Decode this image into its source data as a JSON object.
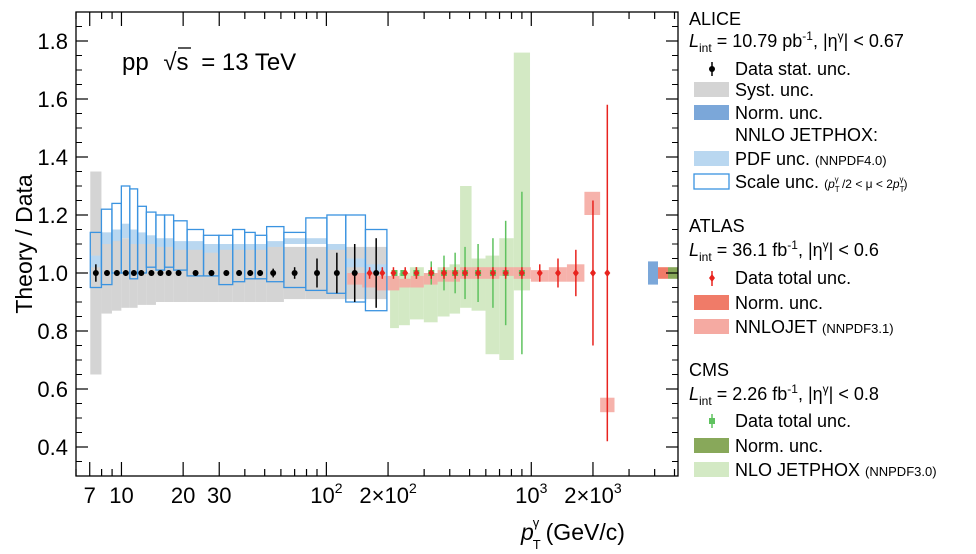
{
  "chart_data": {
    "type": "scatter",
    "xscale": "log",
    "xlim": [
      6,
      5200
    ],
    "ylim": [
      0.3,
      1.9
    ],
    "ylabel": "Theory / Data",
    "xlabel": {
      "main": "p",
      "sup": "γ",
      "sub": "T",
      "unit": " (GeV/c)"
    },
    "annotation": {
      "pp": "pp",
      "root": "√s",
      "eq": "= 13 TeV"
    },
    "yticks": [
      {
        "v": 0.4,
        "label": "0.4"
      },
      {
        "v": 0.6,
        "label": "0.6"
      },
      {
        "v": 0.8,
        "label": "0.8"
      },
      {
        "v": 1.0,
        "label": "1.0"
      },
      {
        "v": 1.2,
        "label": "1.2"
      },
      {
        "v": 1.4,
        "label": "1.4"
      },
      {
        "v": 1.6,
        "label": "1.6"
      },
      {
        "v": 1.8,
        "label": "1.8"
      }
    ],
    "xticks": [
      {
        "v": 7,
        "label": "7"
      },
      {
        "v": 10,
        "label": "10"
      },
      {
        "v": 20,
        "label": "20"
      },
      {
        "v": 30,
        "label": "30"
      },
      {
        "v": 100,
        "label": "10",
        "sup": "2"
      },
      {
        "v": 200,
        "label": "2×10",
        "sup": "2"
      },
      {
        "v": 1000,
        "label": "10",
        "sup": "3"
      },
      {
        "v": 2000,
        "label": "2×10",
        "sup": "3"
      }
    ],
    "colors": {
      "alice_data": "#000000",
      "alice_syst": "#d4d4d4",
      "alice_norm": "#7ba7d9",
      "alice_pdf": "#b9d7f0",
      "alice_scale": "#3a93e0",
      "atlas_data": "#e8231e",
      "atlas_norm": "#f07b68",
      "atlas_nnlojet": "#f5aaa2",
      "cms_data": "#5fc25f",
      "cms_norm": "#88a85a",
      "cms_nlo": "#d3e9c4"
    },
    "series": [
      {
        "name": "ALICE",
        "x": [
          7.5,
          8.5,
          9.5,
          10.5,
          11.5,
          12.5,
          14,
          15.5,
          17,
          19,
          23,
          27.5,
          32.5,
          37.5,
          42.5,
          47.5,
          55,
          70,
          90,
          112.5,
          137.5,
          175
        ],
        "y": [
          1.0,
          1.0,
          1.0,
          1.0,
          1.0,
          1.0,
          1.0,
          1.0,
          1.0,
          1.0,
          1.0,
          1.0,
          1.0,
          1.0,
          1.0,
          1.0,
          1.0,
          1.0,
          1.0,
          1.0,
          1.0,
          1.0
        ],
        "stat": [
          0.03,
          0.01,
          0.01,
          0.01,
          0.01,
          0.01,
          0.01,
          0.01,
          0.01,
          0.01,
          0.01,
          0.01,
          0.01,
          0.01,
          0.01,
          0.01,
          0.015,
          0.02,
          0.05,
          0.07,
          0.1,
          0.12
        ],
        "syst": [
          0.35,
          0.14,
          0.13,
          0.12,
          0.12,
          0.11,
          0.11,
          0.1,
          0.1,
          0.1,
          0.1,
          0.1,
          0.1,
          0.1,
          0.1,
          0.1,
          0.1,
          0.09,
          0.09,
          0.09,
          0.09,
          0.09
        ],
        "scale_lo": [
          0.95,
          0.96,
          1.0,
          1.0,
          0.98,
          1.0,
          1.02,
          1.01,
          1.02,
          1.01,
          0.99,
          0.99,
          0.96,
          0.97,
          0.98,
          0.98,
          0.97,
          0.95,
          0.94,
          0.93,
          0.9,
          0.87
        ],
        "scale_hi": [
          1.14,
          1.22,
          1.24,
          1.3,
          1.29,
          1.23,
          1.21,
          1.2,
          1.2,
          1.18,
          1.15,
          1.13,
          1.13,
          1.15,
          1.14,
          1.13,
          1.16,
          1.14,
          1.19,
          1.2,
          1.2,
          1.15
        ],
        "pdf_lo": [
          1.02,
          1.1,
          1.11,
          1.12,
          1.1,
          1.1,
          1.1,
          1.09,
          1.09,
          1.08,
          1.08,
          1.07,
          1.08,
          1.08,
          1.08,
          1.08,
          1.09,
          1.1,
          1.1,
          1.08,
          1.02,
          1.0
        ],
        "pdf_hi": [
          1.06,
          1.14,
          1.15,
          1.17,
          1.15,
          1.14,
          1.13,
          1.12,
          1.12,
          1.11,
          1.11,
          1.1,
          1.1,
          1.1,
          1.1,
          1.1,
          1.11,
          1.12,
          1.12,
          1.1,
          1.05,
          1.03
        ]
      },
      {
        "name": "ATLAS",
        "x": [
          137.5,
          162.5,
          187.5,
          212.5,
          242.5,
          275,
          325,
          375,
          425,
          475,
          550,
          650,
          750,
          900,
          1100,
          1350,
          1650,
          2000,
          2350
        ],
        "y": [
          1.0,
          1.0,
          1.0,
          1.0,
          1.0,
          1.0,
          1.0,
          1.0,
          1.0,
          1.0,
          1.0,
          1.0,
          1.0,
          1.0,
          1.0,
          1.0,
          1.0,
          1.0,
          1.0
        ],
        "err": [
          0.02,
          0.02,
          0.02,
          0.02,
          0.02,
          0.02,
          0.02,
          0.02,
          0.02,
          0.02,
          0.02,
          0.02,
          0.02,
          0.02,
          0.03,
          0.05,
          0.08,
          0.25,
          0.58
        ],
        "nnlojet_lo": [
          0.96,
          0.95,
          0.94,
          0.94,
          0.95,
          0.95,
          0.96,
          0.97,
          0.97,
          0.98,
          0.98,
          0.98,
          0.99,
          0.98,
          0.97,
          0.97,
          0.97,
          1.2,
          0.52
        ],
        "nnlojet_hi": [
          1.0,
          1.0,
          0.99,
          0.99,
          0.98,
          0.99,
          1.0,
          1.01,
          1.01,
          1.02,
          1.02,
          1.02,
          1.02,
          1.02,
          1.01,
          1.02,
          1.03,
          1.28,
          0.57
        ]
      },
      {
        "name": "CMS",
        "x": [
          215,
          237.5,
          275,
          325,
          375,
          425,
          475,
          550,
          650,
          750,
          900
        ],
        "y": [
          1.0,
          1.0,
          1.0,
          1.0,
          1.0,
          1.0,
          1.0,
          1.0,
          1.0,
          1.0,
          1.0
        ],
        "err": [
          0.01,
          0.01,
          0.02,
          0.04,
          0.06,
          0.07,
          0.09,
          0.1,
          0.12,
          0.18,
          0.28
        ],
        "nlo_lo": [
          0.81,
          0.82,
          0.84,
          0.83,
          0.85,
          0.86,
          0.88,
          0.87,
          0.72,
          0.7,
          0.94
        ],
        "nlo_hi": [
          0.98,
          1.0,
          1.02,
          1.0,
          1.02,
          1.03,
          1.3,
          1.05,
          1.06,
          1.12,
          1.76
        ]
      }
    ],
    "norm_boxes": [
      {
        "name": "ALICE",
        "half": 0.04
      },
      {
        "name": "ATLAS",
        "half": 0.02
      },
      {
        "name": "CMS",
        "half": 0.02
      }
    ],
    "legend": {
      "placement": "right",
      "alice": {
        "title": "ALICE",
        "lumi": {
          "L": "L",
          "Lsub": "int",
          "a": " = 10.79 pb",
          "asup": "-1",
          "b": ", |η",
          "bsup": "γ",
          "c": "| < 0.67"
        },
        "data": "Data stat. unc.",
        "syst": "Syst. unc.",
        "norm": "Norm. unc.",
        "nnlo": "NNLO JETPHOX:",
        "pdf": "PDF unc.",
        "pdf_small": "(NNPDF4.0)",
        "scale": "Scale unc.",
        "scale_small": {
          "open": "(",
          "p1": "p",
          "p1sup": "γ",
          "p1sub": "T",
          "mid": " /2  < μ < 2",
          "p2": "p",
          "p2sup": "γ",
          "p2sub": "T",
          "close": ")"
        }
      },
      "atlas": {
        "title": "ATLAS",
        "lumi": {
          "L": "L",
          "Lsub": "int",
          "a": " = 36.1 fb",
          "asup": "-1",
          "b": ", |η",
          "bsup": "γ",
          "c": "| < 0.6"
        },
        "data": "Data total unc.",
        "norm": "Norm. unc.",
        "nnlojet": "NNLOJET",
        "nnlojet_small": "(NNPDF3.1)"
      },
      "cms": {
        "title": "CMS",
        "lumi": {
          "L": "L",
          "Lsub": "int",
          "a": " = 2.26 fb",
          "asup": "-1",
          "b": ", |η",
          "bsup": "γ",
          "c": "| < 0.8"
        },
        "data": "Data total unc.",
        "norm": "Norm. unc.",
        "nlo": "NLO JETPHOX",
        "nlo_small": "(NNPDF3.0)"
      }
    }
  }
}
